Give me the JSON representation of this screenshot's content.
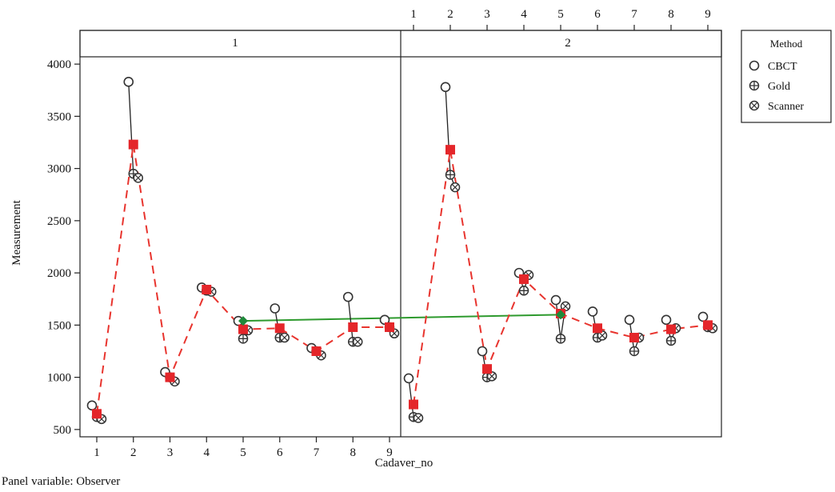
{
  "chart_data": {
    "type": "scatter",
    "title": "",
    "xlabel": "Cadaver_no",
    "ylabel": "Measurement",
    "footnote": "Panel variable: Observer",
    "ylim": [
      430,
      4070
    ],
    "y_ticks": [
      "500",
      "1000",
      "1500",
      "2000",
      "2500",
      "3000",
      "3500",
      "4000"
    ],
    "x_ticks": [
      "1",
      "2",
      "3",
      "4",
      "5",
      "6",
      "7",
      "8",
      "9"
    ],
    "grid": false,
    "legend": {
      "title": "Method",
      "position": "top-right",
      "items": [
        {
          "label": "CBCT",
          "marker": "circle-open"
        },
        {
          "label": "Gold",
          "marker": "circle-cross"
        },
        {
          "label": "Scanner",
          "marker": "circle-x"
        }
      ]
    },
    "colors": {
      "mean_line": "#e8342e",
      "mean_marker": "#e4262a",
      "overall_line": "#2e9a2e",
      "overall_marker": "#1f8a3a",
      "points": "#333333"
    },
    "panels": [
      {
        "label": "1",
        "cbct": [
          730,
          3830,
          1050,
          1860,
          1540,
          1660,
          1280,
          1770,
          1550
        ],
        "gold": [
          620,
          2950,
          1000,
          1830,
          1370,
          1380,
          1250,
          1340,
          1480
        ],
        "scanner": [
          600,
          2910,
          960,
          1820,
          1450,
          1380,
          1210,
          1340,
          1420
        ],
        "mean": [
          650,
          3230,
          1000,
          1840,
          1460,
          1470,
          1250,
          1480,
          1480
        ],
        "overall_mean": 1540,
        "overall_x": 5
      },
      {
        "label": "2",
        "cbct": [
          990,
          3780,
          1250,
          2000,
          1740,
          1630,
          1550,
          1550,
          1580
        ],
        "gold": [
          620,
          2940,
          1000,
          1830,
          1370,
          1380,
          1250,
          1350,
          1480
        ],
        "scanner": [
          610,
          2820,
          1010,
          1980,
          1680,
          1400,
          1380,
          1470,
          1470
        ],
        "mean": [
          740,
          3180,
          1080,
          1940,
          1610,
          1470,
          1380,
          1460,
          1500
        ],
        "overall_mean": 1600,
        "overall_x": 5
      }
    ]
  }
}
